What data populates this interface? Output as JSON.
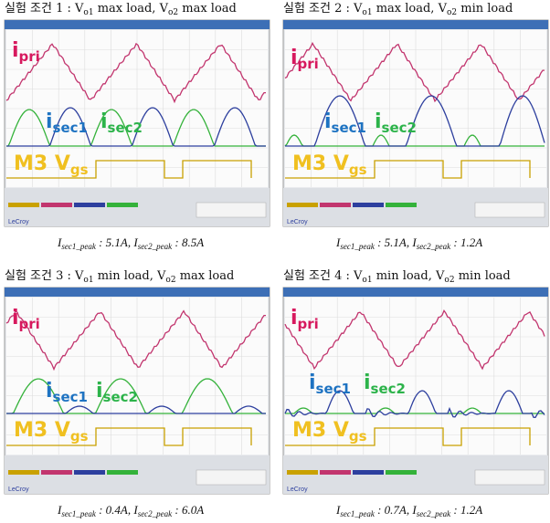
{
  "panels": [
    {
      "title": [
        {
          "text": "실험 조건 1 : V"
        },
        {
          "sub": "o1"
        },
        {
          "text": " max load, V"
        },
        {
          "sub": "o2"
        },
        {
          "text": " max load"
        }
      ],
      "caption": [
        {
          "text": "I"
        },
        {
          "sub": "sec1_peak"
        },
        {
          "text": " : 5.1A, I"
        },
        {
          "sub": "sec2_peak"
        },
        {
          "text": " : 8.5A"
        }
      ],
      "labels": {
        "pri": [
          "i",
          "pri"
        ],
        "sec1": [
          "i",
          "sec1"
        ],
        "sec2": [
          "i",
          "sec2"
        ],
        "gate": [
          "M3 V",
          "gs"
        ]
      },
      "brand": "LeCroy"
    },
    {
      "title": [
        {
          "text": "실험 조건 2 : V"
        },
        {
          "sub": "o1"
        },
        {
          "text": " max load, V"
        },
        {
          "sub": "o2"
        },
        {
          "text": " min load"
        }
      ],
      "caption": [
        {
          "text": "I"
        },
        {
          "sub": "sec1_peak"
        },
        {
          "text": " : 5.1A, I"
        },
        {
          "sub": "sec2_peak"
        },
        {
          "text": " : 1.2A"
        }
      ],
      "labels": {
        "pri": [
          "i",
          "pri"
        ],
        "sec1": [
          "i",
          "sec1"
        ],
        "sec2": [
          "i",
          "sec2"
        ],
        "gate": [
          "M3 V",
          "gs"
        ]
      },
      "brand": "LeCroy"
    },
    {
      "title": [
        {
          "text": "실험 조건 3 : V"
        },
        {
          "sub": "o1"
        },
        {
          "text": " min load, V"
        },
        {
          "sub": "o2"
        },
        {
          "text": " max load"
        }
      ],
      "caption": [
        {
          "text": "I"
        },
        {
          "sub": "sec1_peak"
        },
        {
          "text": " : 0.4A, I"
        },
        {
          "sub": "sec2_peak"
        },
        {
          "text": " : 6.0A"
        }
      ],
      "labels": {
        "pri": [
          "i",
          "pri"
        ],
        "sec1": [
          "i",
          "sec1"
        ],
        "sec2": [
          "i",
          "sec2"
        ],
        "gate": [
          "M3 V",
          "gs"
        ]
      },
      "brand": "LeCroy"
    },
    {
      "title": [
        {
          "text": "실험 조건 4 : V"
        },
        {
          "sub": "o1"
        },
        {
          "text": " min load, V"
        },
        {
          "sub": "o2"
        },
        {
          "text": " min load"
        }
      ],
      "caption": [
        {
          "text": "I"
        },
        {
          "sub": "sec1_peak"
        },
        {
          "text": " : 0.7A, I"
        },
        {
          "sub": "sec2_peak"
        },
        {
          "text": " : 1.2A"
        }
      ],
      "labels": {
        "pri": [
          "i",
          "pri"
        ],
        "sec1": [
          "i",
          "sec1"
        ],
        "sec2": [
          "i",
          "sec2"
        ],
        "gate": [
          "M3 V",
          "gs"
        ]
      },
      "brand": "LeCroy"
    }
  ]
}
